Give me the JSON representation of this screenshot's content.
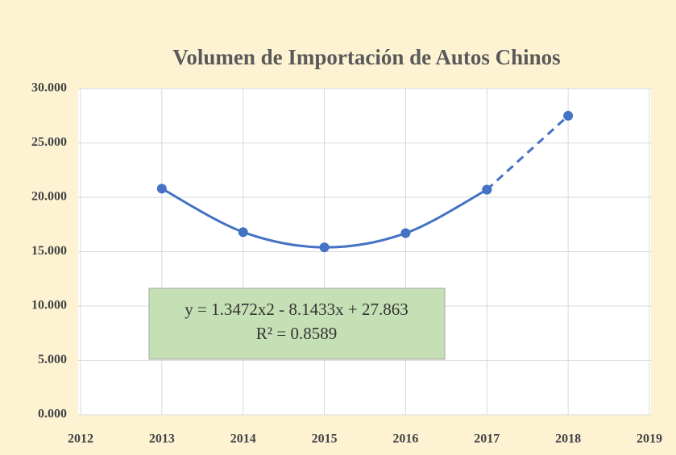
{
  "chart_data": {
    "type": "line",
    "title": "Volumen de Importación de Autos Chinos",
    "x": [
      2013,
      2014,
      2015,
      2016,
      2017,
      2018
    ],
    "series": [
      {
        "color": "#4472c4",
        "dashed": false,
        "values": [
          20.8,
          16.8,
          15.4,
          16.7,
          20.7,
          null
        ]
      },
      {
        "color": "#4472c4",
        "dashed": true,
        "values": [
          null,
          null,
          null,
          null,
          20.7,
          27.5
        ]
      }
    ],
    "xlim": [
      2012,
      2019
    ],
    "xticks": [
      2012,
      2013,
      2014,
      2015,
      2016,
      2017,
      2018,
      2019
    ],
    "ylim": [
      0,
      30
    ],
    "yticks": [
      {
        "value": 0,
        "label": "0.000"
      },
      {
        "value": 5,
        "label": "5.000"
      },
      {
        "value": 10,
        "label": "10.000"
      },
      {
        "value": 15,
        "label": "15.000"
      },
      {
        "value": 20,
        "label": "20.000"
      },
      {
        "value": 25,
        "label": "25.000"
      },
      {
        "value": 30,
        "label": "30.000"
      }
    ],
    "grid": true,
    "annotation": [
      "y = 1.3472x2 - 8.1433x + 27.863",
      "R² = 0.8589"
    ]
  }
}
